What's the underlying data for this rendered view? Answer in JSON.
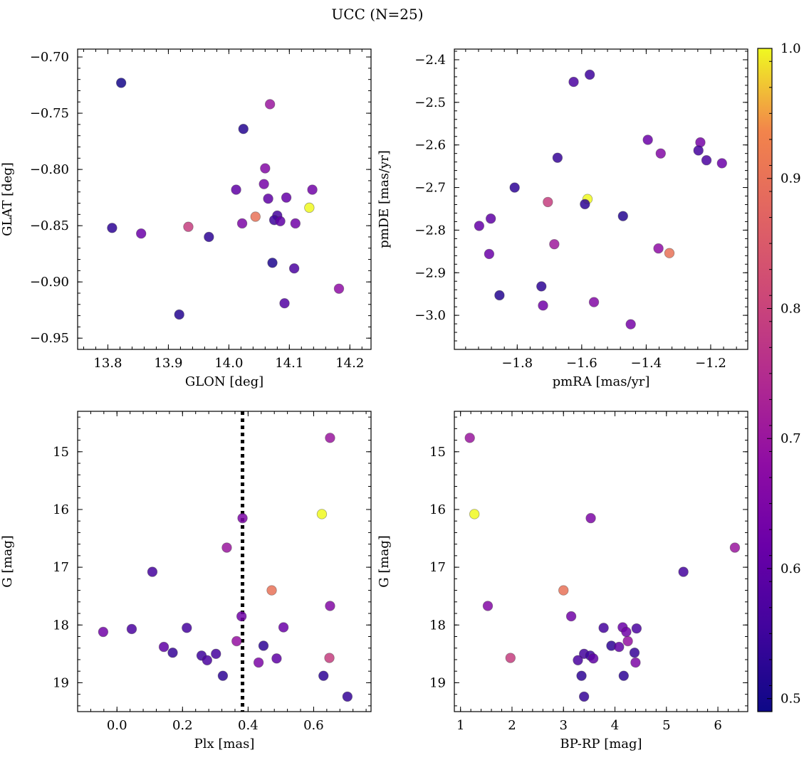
{
  "figure": {
    "title": "UCC (N=25)"
  },
  "colorbar": {
    "ticks": [
      "0.5",
      "0.6",
      "0.7",
      "0.8",
      "0.9",
      "1.0"
    ],
    "tick_values": [
      0.5,
      0.6,
      0.7,
      0.8,
      0.9,
      1.0
    ],
    "range": [
      0.49,
      1.0
    ],
    "colormap": "plasma"
  },
  "chart_data": [
    {
      "id": "p1",
      "type": "scatter",
      "title": "",
      "xlabel": "GLON [deg]",
      "ylabel": "GLAT [deg]",
      "xlim": [
        13.75,
        14.235
      ],
      "ylim": [
        -0.96,
        -0.693
      ],
      "y_inverted": false,
      "xticks": [
        13.8,
        13.9,
        14.0,
        14.1,
        14.2
      ],
      "xticklabels": [
        "13.8",
        "13.9",
        "14.0",
        "14.1",
        "14.2"
      ],
      "yticks": [
        -0.7,
        -0.75,
        -0.8,
        -0.85,
        -0.9,
        -0.95
      ],
      "yticklabels": [
        "−0.70",
        "−0.75",
        "−0.80",
        "−0.85",
        "−0.90",
        "−0.95"
      ],
      "points": [
        {
          "x": 13.822,
          "y": -0.723,
          "c": 0.5
        },
        {
          "x": 14.068,
          "y": -0.742,
          "c": 0.7
        },
        {
          "x": 14.024,
          "y": -0.764,
          "c": 0.52
        },
        {
          "x": 14.06,
          "y": -0.799,
          "c": 0.66
        },
        {
          "x": 14.012,
          "y": -0.818,
          "c": 0.6
        },
        {
          "x": 14.058,
          "y": -0.813,
          "c": 0.64
        },
        {
          "x": 14.138,
          "y": -0.818,
          "c": 0.63
        },
        {
          "x": 14.065,
          "y": -0.826,
          "c": 0.6
        },
        {
          "x": 14.095,
          "y": -0.825,
          "c": 0.61
        },
        {
          "x": 14.133,
          "y": -0.834,
          "c": 1.0
        },
        {
          "x": 14.044,
          "y": -0.842,
          "c": 0.9
        },
        {
          "x": 14.08,
          "y": -0.841,
          "c": 0.56
        },
        {
          "x": 14.075,
          "y": -0.845,
          "c": 0.55
        },
        {
          "x": 14.085,
          "y": -0.846,
          "c": 0.6
        },
        {
          "x": 14.022,
          "y": -0.848,
          "c": 0.65
        },
        {
          "x": 14.11,
          "y": -0.848,
          "c": 0.63
        },
        {
          "x": 13.807,
          "y": -0.852,
          "c": 0.53
        },
        {
          "x": 13.933,
          "y": -0.851,
          "c": 0.79
        },
        {
          "x": 13.855,
          "y": -0.857,
          "c": 0.62
        },
        {
          "x": 13.967,
          "y": -0.86,
          "c": 0.53
        },
        {
          "x": 14.072,
          "y": -0.883,
          "c": 0.51
        },
        {
          "x": 14.108,
          "y": -0.888,
          "c": 0.57
        },
        {
          "x": 14.182,
          "y": -0.906,
          "c": 0.68
        },
        {
          "x": 14.092,
          "y": -0.919,
          "c": 0.58
        },
        {
          "x": 13.918,
          "y": -0.929,
          "c": 0.52
        }
      ]
    },
    {
      "id": "p2",
      "type": "scatter",
      "title": "",
      "xlabel": "pmRA [mas/yr]",
      "ylabel": "pmDE [mas/yr]",
      "xlim": [
        -1.995,
        -1.085
      ],
      "ylim": [
        -3.08,
        -2.375
      ],
      "y_inverted": false,
      "xticks": [
        -1.8,
        -1.6,
        -1.4,
        -1.2
      ],
      "xticklabels": [
        "−1.8",
        "−1.6",
        "−1.4",
        "−1.2"
      ],
      "yticks": [
        -2.4,
        -2.5,
        -2.6,
        -2.7,
        -2.8,
        -2.9,
        -3.0
      ],
      "yticklabels": [
        "−2.4",
        "−2.5",
        "−2.6",
        "−2.7",
        "−2.8",
        "−2.9",
        "−3.0"
      ],
      "points": [
        {
          "x": -1.575,
          "y": -2.435,
          "c": 0.55
        },
        {
          "x": -1.625,
          "y": -2.452,
          "c": 0.57
        },
        {
          "x": -1.395,
          "y": -2.588,
          "c": 0.62
        },
        {
          "x": -1.232,
          "y": -2.594,
          "c": 0.64
        },
        {
          "x": -1.238,
          "y": -2.613,
          "c": 0.56
        },
        {
          "x": -1.355,
          "y": -2.62,
          "c": 0.66
        },
        {
          "x": -1.213,
          "y": -2.636,
          "c": 0.57
        },
        {
          "x": -1.165,
          "y": -2.643,
          "c": 0.62
        },
        {
          "x": -1.675,
          "y": -2.63,
          "c": 0.54
        },
        {
          "x": -1.808,
          "y": -2.7,
          "c": 0.53
        },
        {
          "x": -1.582,
          "y": -2.727,
          "c": 1.0
        },
        {
          "x": -1.705,
          "y": -2.734,
          "c": 0.79
        },
        {
          "x": -1.59,
          "y": -2.739,
          "c": 0.53
        },
        {
          "x": -1.472,
          "y": -2.767,
          "c": 0.52
        },
        {
          "x": -1.882,
          "y": -2.773,
          "c": 0.6
        },
        {
          "x": -1.918,
          "y": -2.79,
          "c": 0.61
        },
        {
          "x": -1.685,
          "y": -2.833,
          "c": 0.71
        },
        {
          "x": -1.362,
          "y": -2.843,
          "c": 0.68
        },
        {
          "x": -1.328,
          "y": -2.854,
          "c": 0.9
        },
        {
          "x": -1.887,
          "y": -2.856,
          "c": 0.62
        },
        {
          "x": -1.855,
          "y": -2.953,
          "c": 0.52
        },
        {
          "x": -1.725,
          "y": -2.932,
          "c": 0.53
        },
        {
          "x": -1.562,
          "y": -2.969,
          "c": 0.66
        },
        {
          "x": -1.72,
          "y": -2.977,
          "c": 0.63
        },
        {
          "x": -1.448,
          "y": -3.021,
          "c": 0.64
        }
      ]
    },
    {
      "id": "p3",
      "type": "scatter",
      "title": "",
      "xlabel": "Plx [mas]",
      "ylabel": "G [mag]",
      "xlim": [
        -0.12,
        0.775
      ],
      "ylim": [
        19.5,
        14.3
      ],
      "y_inverted": true,
      "xticks": [
        0.0,
        0.2,
        0.4,
        0.6
      ],
      "xticklabels": [
        "0.0",
        "0.2",
        "0.4",
        "0.6"
      ],
      "yticks": [
        15,
        16,
        17,
        18,
        19
      ],
      "yticklabels": [
        "15",
        "16",
        "17",
        "18",
        "19"
      ],
      "vline": {
        "x": 0.383,
        "style": "dotted",
        "color": "#000000"
      },
      "points": [
        {
          "x": 0.65,
          "y": 14.76,
          "c": 0.7
        },
        {
          "x": 0.625,
          "y": 16.08,
          "c": 1.0
        },
        {
          "x": 0.383,
          "y": 16.15,
          "c": 0.65
        },
        {
          "x": 0.335,
          "y": 16.66,
          "c": 0.7
        },
        {
          "x": 0.108,
          "y": 17.08,
          "c": 0.56
        },
        {
          "x": 0.472,
          "y": 17.4,
          "c": 0.9
        },
        {
          "x": 0.65,
          "y": 17.67,
          "c": 0.66
        },
        {
          "x": 0.38,
          "y": 17.85,
          "c": 0.63
        },
        {
          "x": -0.042,
          "y": 18.12,
          "c": 0.63
        },
        {
          "x": 0.045,
          "y": 18.07,
          "c": 0.57
        },
        {
          "x": 0.213,
          "y": 18.05,
          "c": 0.56
        },
        {
          "x": 0.508,
          "y": 18.04,
          "c": 0.62
        },
        {
          "x": 0.143,
          "y": 18.38,
          "c": 0.6
        },
        {
          "x": 0.365,
          "y": 18.28,
          "c": 0.69
        },
        {
          "x": 0.447,
          "y": 18.36,
          "c": 0.53
        },
        {
          "x": 0.17,
          "y": 18.48,
          "c": 0.54
        },
        {
          "x": 0.258,
          "y": 18.53,
          "c": 0.55
        },
        {
          "x": 0.302,
          "y": 18.5,
          "c": 0.56
        },
        {
          "x": 0.275,
          "y": 18.61,
          "c": 0.57
        },
        {
          "x": 0.487,
          "y": 18.58,
          "c": 0.6
        },
        {
          "x": 0.432,
          "y": 18.65,
          "c": 0.65
        },
        {
          "x": 0.648,
          "y": 18.57,
          "c": 0.79
        },
        {
          "x": 0.323,
          "y": 18.88,
          "c": 0.53
        },
        {
          "x": 0.63,
          "y": 18.88,
          "c": 0.53
        },
        {
          "x": 0.703,
          "y": 19.24,
          "c": 0.54
        }
      ]
    },
    {
      "id": "p4",
      "type": "scatter",
      "title": "",
      "xlabel": "BP-RP [mag]",
      "ylabel": "G [mag]",
      "xlim": [
        0.88,
        6.58
      ],
      "ylim": [
        19.5,
        14.3
      ],
      "y_inverted": true,
      "xticks": [
        1,
        2,
        3,
        4,
        5,
        6
      ],
      "xticklabels": [
        "1",
        "2",
        "3",
        "4",
        "5",
        "6"
      ],
      "yticks": [
        15,
        16,
        17,
        18,
        19
      ],
      "yticklabels": [
        "15",
        "16",
        "17",
        "18",
        "19"
      ],
      "points": [
        {
          "x": 1.18,
          "y": 14.76,
          "c": 0.7
        },
        {
          "x": 1.27,
          "y": 16.08,
          "c": 1.0
        },
        {
          "x": 3.53,
          "y": 16.15,
          "c": 0.65
        },
        {
          "x": 6.33,
          "y": 16.66,
          "c": 0.7
        },
        {
          "x": 5.33,
          "y": 17.08,
          "c": 0.56
        },
        {
          "x": 3.0,
          "y": 17.4,
          "c": 0.9
        },
        {
          "x": 1.53,
          "y": 17.67,
          "c": 0.66
        },
        {
          "x": 3.15,
          "y": 17.85,
          "c": 0.63
        },
        {
          "x": 3.78,
          "y": 18.05,
          "c": 0.56
        },
        {
          "x": 4.15,
          "y": 18.04,
          "c": 0.62
        },
        {
          "x": 4.42,
          "y": 18.06,
          "c": 0.57
        },
        {
          "x": 4.22,
          "y": 18.12,
          "c": 0.63
        },
        {
          "x": 4.25,
          "y": 18.28,
          "c": 0.69
        },
        {
          "x": 3.93,
          "y": 18.36,
          "c": 0.53
        },
        {
          "x": 4.08,
          "y": 18.38,
          "c": 0.6
        },
        {
          "x": 4.38,
          "y": 18.48,
          "c": 0.54
        },
        {
          "x": 3.4,
          "y": 18.5,
          "c": 0.56
        },
        {
          "x": 3.52,
          "y": 18.53,
          "c": 0.55
        },
        {
          "x": 3.58,
          "y": 18.58,
          "c": 0.6
        },
        {
          "x": 3.28,
          "y": 18.61,
          "c": 0.57
        },
        {
          "x": 1.97,
          "y": 18.57,
          "c": 0.79
        },
        {
          "x": 4.4,
          "y": 18.65,
          "c": 0.65
        },
        {
          "x": 3.35,
          "y": 18.88,
          "c": 0.53
        },
        {
          "x": 4.17,
          "y": 18.88,
          "c": 0.53
        },
        {
          "x": 3.4,
          "y": 19.24,
          "c": 0.54
        }
      ]
    }
  ]
}
